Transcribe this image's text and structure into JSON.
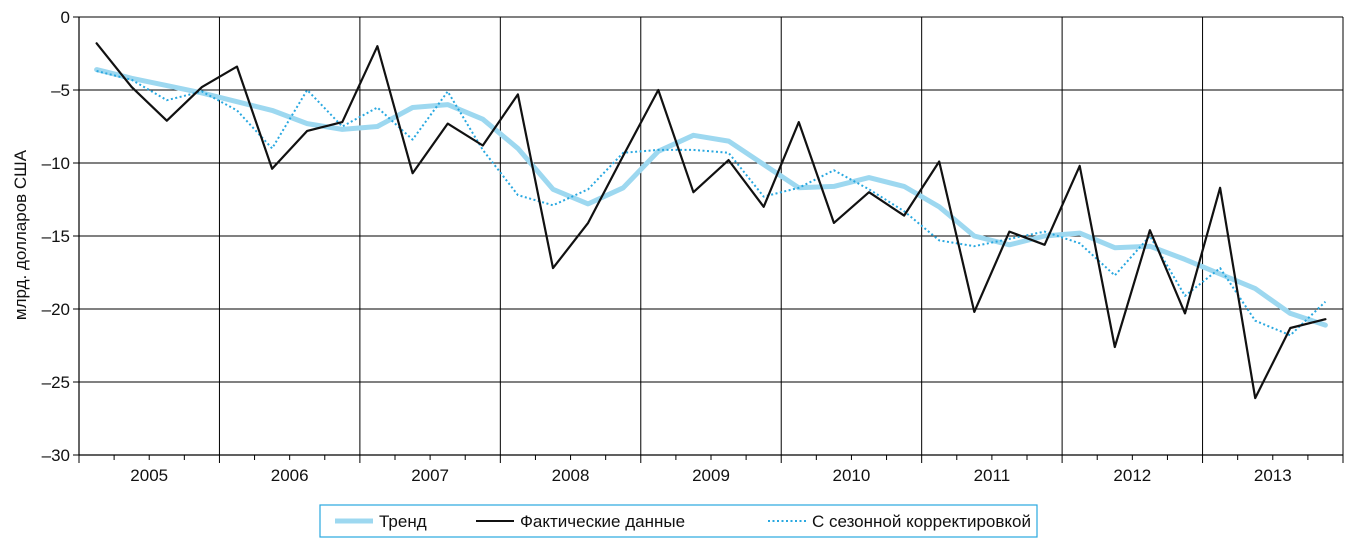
{
  "chart_data": {
    "type": "line",
    "title": "",
    "xlabel": "",
    "ylabel": "млрд. долларов США",
    "ylim": [
      -30,
      0
    ],
    "y_ticks": [
      0,
      -5,
      -10,
      -15,
      -20,
      -25,
      -30
    ],
    "y_tick_labels": [
      "0",
      "–5",
      "–10",
      "–15",
      "–20",
      "–25",
      "–30"
    ],
    "x_tick_labels": [
      "2005",
      "2006",
      "2007",
      "2008",
      "2009",
      "2010",
      "2011",
      "2012",
      "2013"
    ],
    "x_range_quarters": [
      0.5,
      36.5
    ],
    "grid": true,
    "legend_position": "bottom",
    "series": [
      {
        "name": "Тренд",
        "color": "#9dd8f0",
        "style": "solid-thick",
        "x": [
          1,
          2,
          3,
          4,
          5,
          6,
          7,
          8,
          9,
          10,
          11,
          12,
          13,
          14,
          15,
          16,
          17,
          18,
          19,
          20,
          21,
          22,
          23,
          24,
          25,
          26,
          27,
          28,
          29,
          30,
          31,
          32,
          33,
          34,
          35,
          36
        ],
        "values": [
          -3.6,
          -4.2,
          -4.7,
          -5.2,
          -5.8,
          -6.4,
          -7.3,
          -7.7,
          -7.5,
          -6.2,
          -6.0,
          -7.0,
          -9.0,
          -11.8,
          -12.8,
          -11.7,
          -9.2,
          -8.1,
          -8.5,
          -10.1,
          -11.7,
          -11.6,
          -11.0,
          -11.6,
          -13.0,
          -15.0,
          -15.6,
          -15.0,
          -14.8,
          -15.8,
          -15.7,
          -16.6,
          -17.6,
          -18.6,
          -20.3,
          -21.1
        ]
      },
      {
        "name": "Фактические данные",
        "color": "#111111",
        "style": "solid",
        "x": [
          1,
          2,
          3,
          4,
          5,
          6,
          7,
          8,
          9,
          10,
          11,
          12,
          13,
          14,
          15,
          16,
          17,
          18,
          19,
          20,
          21,
          22,
          23,
          24,
          25,
          26,
          27,
          28,
          29,
          30,
          31,
          32,
          33,
          34,
          35,
          36
        ],
        "values": [
          -1.8,
          -4.8,
          -7.1,
          -4.8,
          -3.4,
          -10.4,
          -7.8,
          -7.2,
          -2.0,
          -10.7,
          -7.3,
          -8.8,
          -5.3,
          -17.2,
          -14.1,
          -9.5,
          -5.0,
          -12.0,
          -9.8,
          -13.0,
          -7.2,
          -14.1,
          -12.0,
          -13.6,
          -9.9,
          -20.2,
          -14.7,
          -15.6,
          -10.2,
          -22.6,
          -14.6,
          -20.3,
          -11.7,
          -26.1,
          -21.3,
          -20.7
        ]
      },
      {
        "name": "С сезонной корректировкой",
        "color": "#29a8e0",
        "style": "dotted",
        "x": [
          1,
          2,
          3,
          4,
          5,
          6,
          7,
          8,
          9,
          10,
          11,
          12,
          13,
          14,
          15,
          16,
          17,
          18,
          19,
          20,
          21,
          22,
          23,
          24,
          25,
          26,
          27,
          28,
          29,
          30,
          31,
          32,
          33,
          34,
          35,
          36
        ],
        "values": [
          -3.7,
          -4.3,
          -5.7,
          -5.1,
          -6.4,
          -9.0,
          -5.0,
          -7.5,
          -6.2,
          -8.4,
          -5.1,
          -9.1,
          -12.2,
          -12.9,
          -11.8,
          -9.3,
          -9.1,
          -9.1,
          -9.3,
          -12.3,
          -11.7,
          -10.5,
          -11.8,
          -13.3,
          -15.3,
          -15.7,
          -15.2,
          -14.7,
          -15.5,
          -17.7,
          -15.0,
          -19.1,
          -17.2,
          -20.8,
          -21.8,
          -19.5
        ]
      }
    ]
  }
}
